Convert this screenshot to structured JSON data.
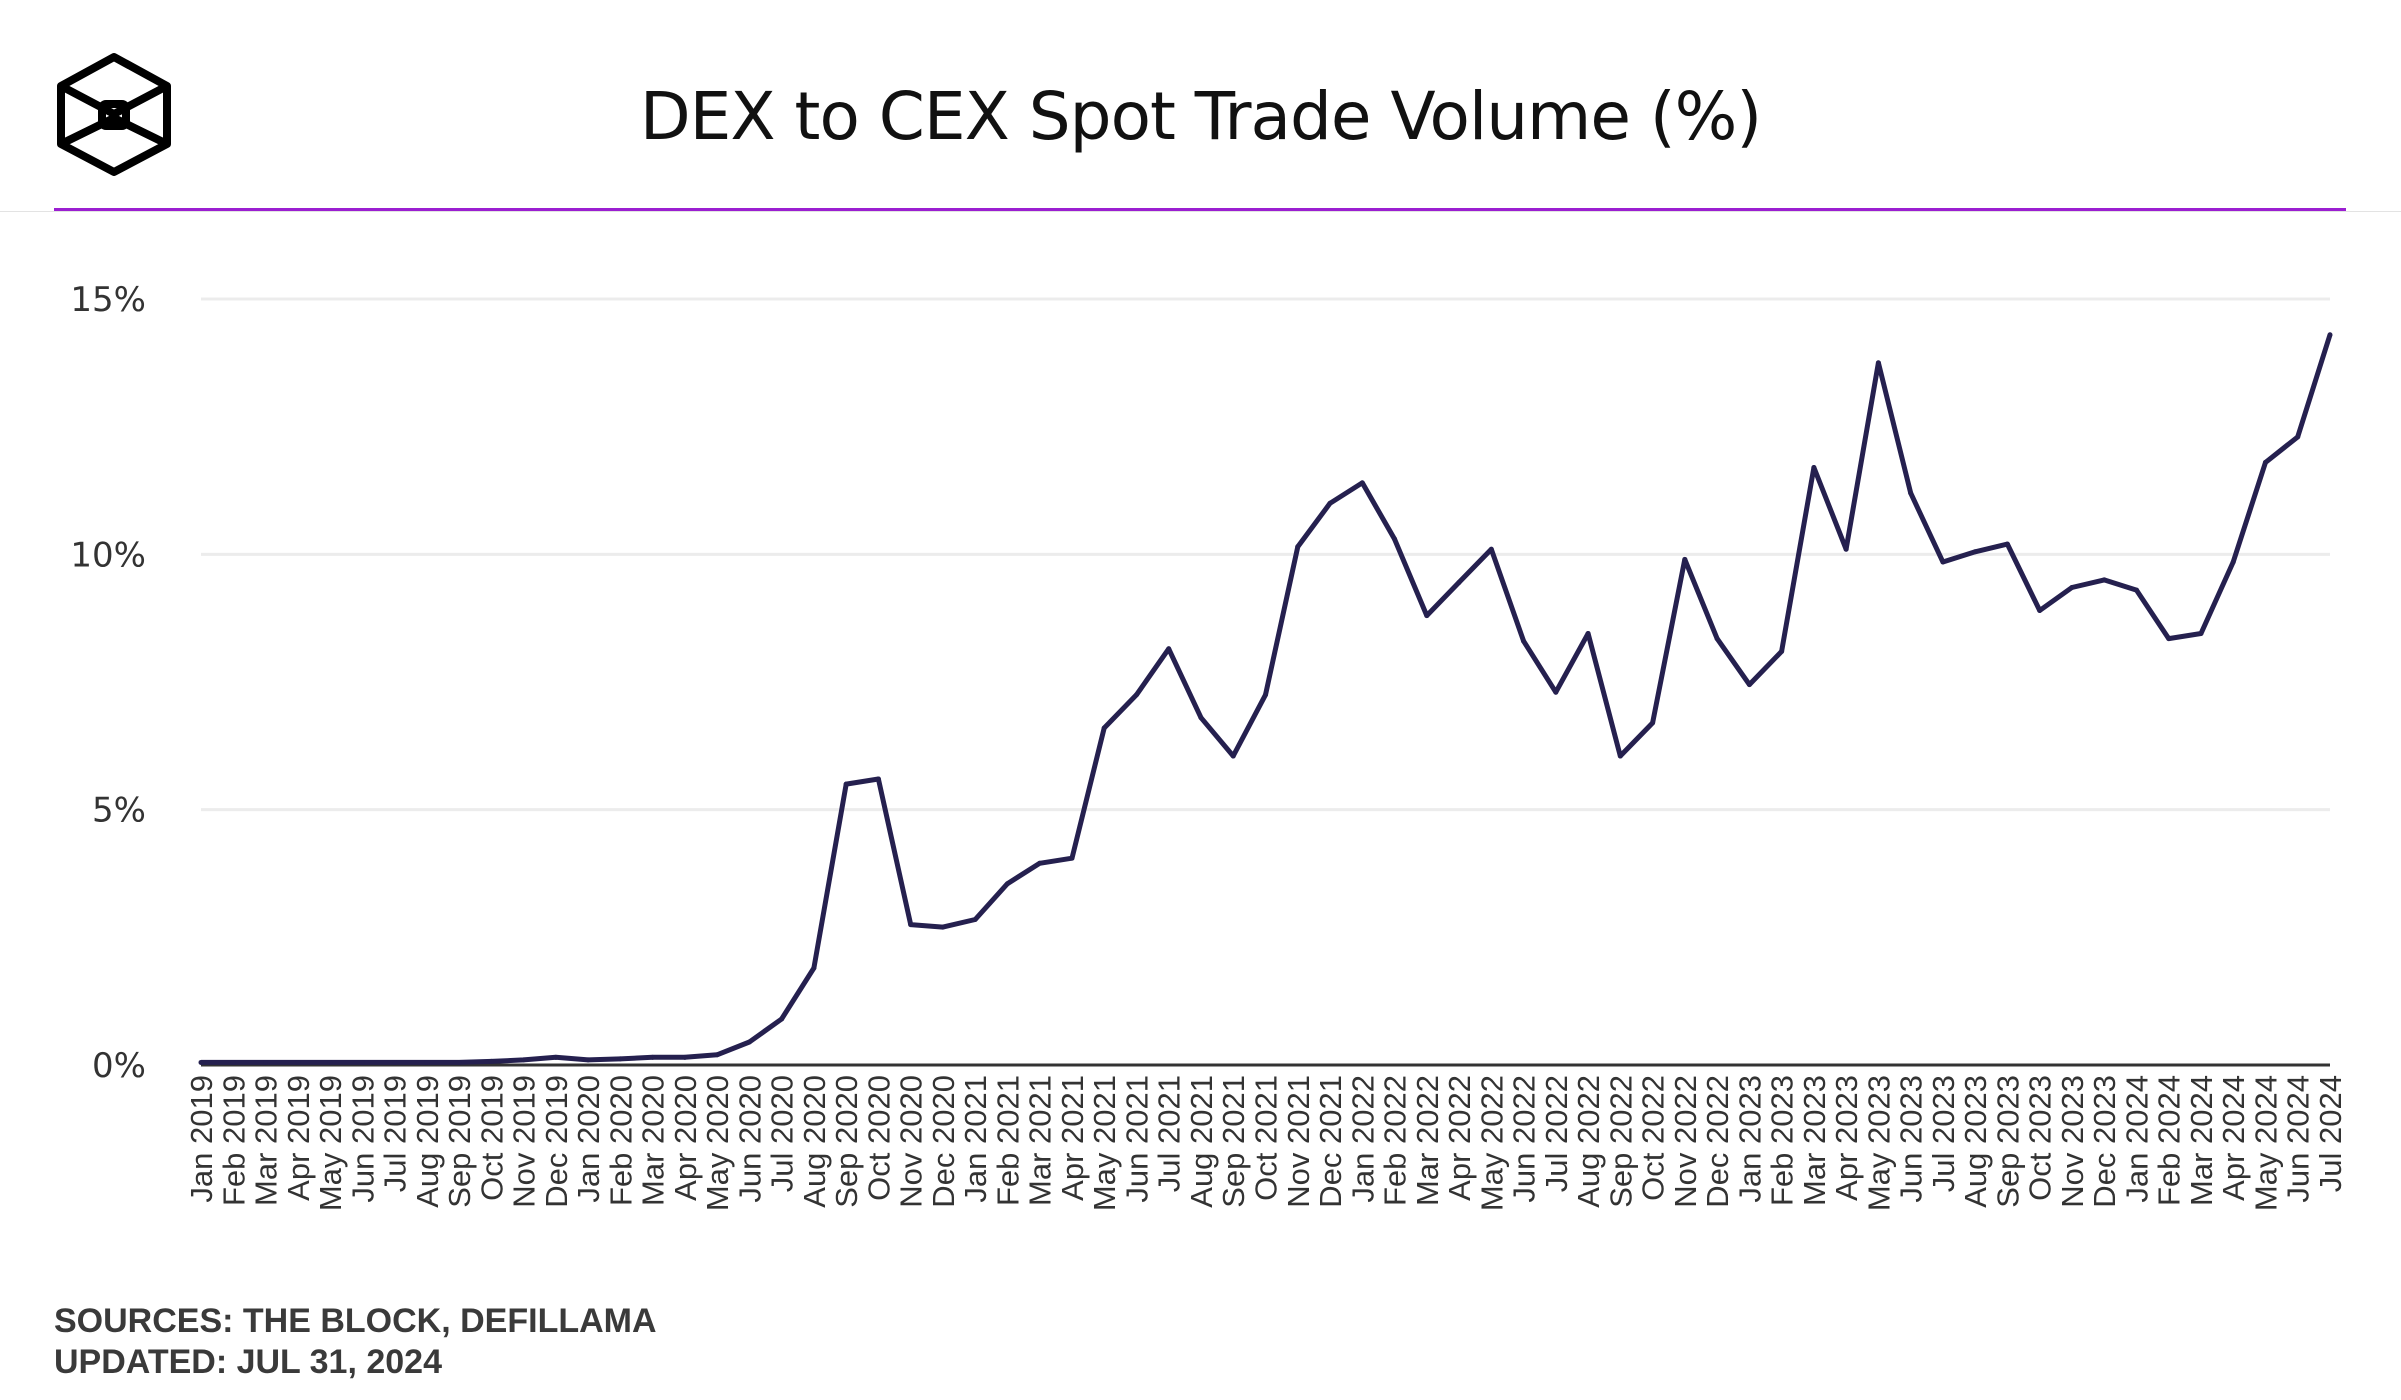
{
  "header": {
    "title": "DEX to CEX Spot Trade Volume (%)",
    "logo": "The Block logo"
  },
  "footer": {
    "sources": "SOURCES: THE BLOCK, DEFILLAMA",
    "updated": "UPDATED: JUL 31, 2024"
  },
  "colors": {
    "line": "#25204f",
    "accent": "#9b1fd1",
    "grid": "#ececec",
    "axis": "#333333"
  },
  "chart_data": {
    "type": "line",
    "title": "DEX to CEX Spot Trade Volume (%)",
    "xlabel": "",
    "ylabel": "",
    "ylim": [
      0,
      15
    ],
    "yticks": [
      "0%",
      "5%",
      "10%",
      "15%"
    ],
    "ytick_values": [
      0,
      5,
      10,
      15
    ],
    "grid": true,
    "categories": [
      "Jan 2019",
      "Feb 2019",
      "Mar 2019",
      "Apr 2019",
      "May 2019",
      "Jun 2019",
      "Jul 2019",
      "Aug 2019",
      "Sep 2019",
      "Oct 2019",
      "Nov 2019",
      "Dec 2019",
      "Jan 2020",
      "Feb 2020",
      "Mar 2020",
      "Apr 2020",
      "May 2020",
      "Jun 2020",
      "Jul 2020",
      "Aug 2020",
      "Sep 2020",
      "Oct 2020",
      "Nov 2020",
      "Dec 2020",
      "Jan 2021",
      "Feb 2021",
      "Mar 2021",
      "Apr 2021",
      "May 2021",
      "Jun 2021",
      "Jul 2021",
      "Aug 2021",
      "Sep 2021",
      "Oct 2021",
      "Nov 2021",
      "Dec 2021",
      "Jan 2022",
      "Feb 2022",
      "Mar 2022",
      "Apr 2022",
      "May 2022",
      "Jun 2022",
      "Jul 2022",
      "Aug 2022",
      "Sep 2022",
      "Oct 2022",
      "Nov 2022",
      "Dec 2022",
      "Jan 2023",
      "Feb 2023",
      "Mar 2023",
      "Apr 2023",
      "May 2023",
      "Jun 2023",
      "Jul 2023",
      "Aug 2023",
      "Sep 2023",
      "Oct 2023",
      "Nov 2023",
      "Dec 2023",
      "Jan 2024",
      "Feb 2024",
      "Mar 2024",
      "Apr 2024",
      "May 2024",
      "Jun 2024",
      "Jul 2024"
    ],
    "values": [
      0.05,
      0.05,
      0.05,
      0.05,
      0.05,
      0.05,
      0.05,
      0.05,
      0.05,
      0.07,
      0.1,
      0.15,
      0.1,
      0.12,
      0.15,
      0.15,
      0.2,
      0.45,
      0.9,
      1.9,
      5.5,
      5.6,
      2.75,
      2.7,
      2.85,
      3.55,
      3.95,
      4.05,
      6.6,
      7.25,
      8.15,
      6.8,
      6.05,
      7.25,
      10.15,
      11.0,
      11.4,
      10.3,
      8.8,
      9.45,
      10.1,
      8.3,
      7.3,
      8.45,
      6.05,
      6.7,
      9.9,
      8.35,
      7.45,
      8.1,
      11.7,
      10.1,
      13.75,
      11.2,
      9.85,
      10.05,
      10.2,
      8.9,
      9.35,
      9.5,
      9.3,
      8.35,
      8.45,
      9.85,
      11.8,
      12.3,
      14.3
    ]
  }
}
